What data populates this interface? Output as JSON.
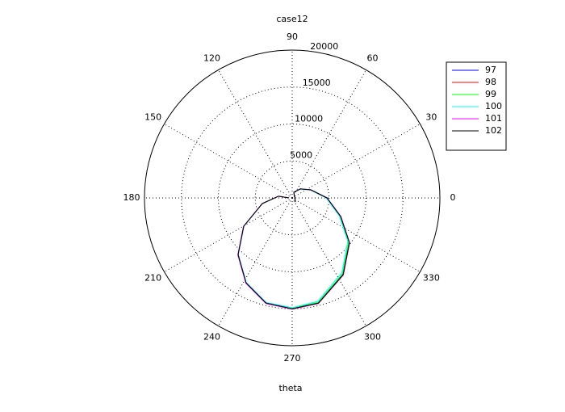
{
  "chart_data": {
    "type": "polar",
    "title": "case12",
    "xlabel": "theta",
    "theta": [
      309,
      74,
      48,
      23.5,
      0,
      339,
      322,
      303.6,
      284,
      270,
      256,
      241.5,
      226.3,
      210.3,
      190.7,
      173,
      180
    ],
    "series": [
      {
        "name": "97",
        "color": "#0000ff",
        "values": [
          700,
          800,
          1630,
          2740,
          4700,
          7030,
          9820,
          12460,
          14660,
          14980,
          14640,
          13060,
          10590,
          7590,
          4120,
          1870,
          440
        ]
      },
      {
        "name": "98",
        "color": "#ff0000",
        "values": [
          700,
          810,
          1640,
          2760,
          4730,
          7060,
          9850,
          12500,
          14700,
          15020,
          14680,
          13100,
          10620,
          7610,
          4130,
          1880,
          440
        ]
      },
      {
        "name": "99",
        "color": "#00ff00",
        "values": [
          700,
          800,
          1620,
          2720,
          4660,
          6960,
          9700,
          12330,
          14560,
          14930,
          14620,
          13050,
          10580,
          7580,
          4110,
          1870,
          440
        ]
      },
      {
        "name": "100",
        "color": "#00ffff",
        "values": [
          690,
          790,
          1600,
          2680,
          4600,
          6850,
          9550,
          12150,
          14420,
          14850,
          14580,
          13020,
          10560,
          7570,
          4100,
          1860,
          440
        ]
      },
      {
        "name": "101",
        "color": "#ff00ff",
        "values": [
          700,
          810,
          1650,
          2770,
          4740,
          7080,
          9880,
          12520,
          14720,
          15060,
          14720,
          13140,
          10660,
          7640,
          4150,
          1890,
          450
        ]
      },
      {
        "name": "102",
        "color": "#000000",
        "values": [
          700,
          800,
          1630,
          2740,
          4710,
          7040,
          9830,
          12470,
          14670,
          14990,
          14650,
          13070,
          10600,
          7600,
          4120,
          1870,
          440
        ]
      }
    ],
    "rlim": [
      0,
      20000
    ],
    "rticks": [
      5000,
      10000,
      15000,
      20000
    ],
    "thetaticks": [
      0,
      30,
      60,
      90,
      120,
      150,
      180,
      210,
      240,
      270,
      300,
      330
    ],
    "grid": true,
    "legend": "upper right"
  }
}
